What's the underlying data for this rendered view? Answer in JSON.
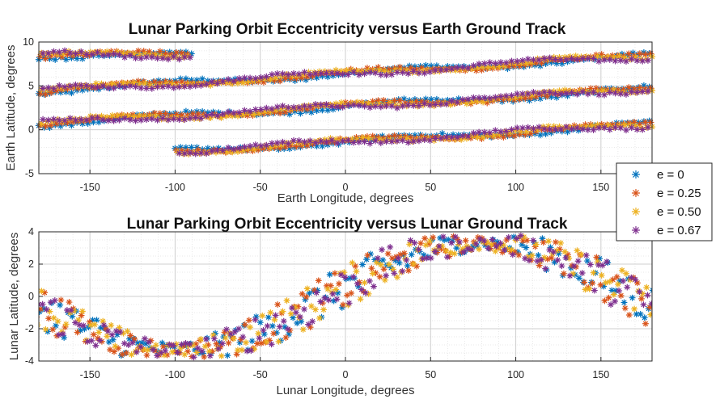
{
  "chart_data": [
    {
      "type": "scatter",
      "title": "Lunar Parking Orbit Eccentricity versus Earth Ground Track",
      "xlabel": "Earth Longitude, degrees",
      "ylabel": "Earth Latitude, degrees",
      "xlim": [
        -180,
        180
      ],
      "ylim": [
        -5,
        10
      ],
      "xticks": [
        -150,
        -100,
        -50,
        0,
        50,
        100,
        150
      ],
      "yticks": [
        -5,
        0,
        5,
        10
      ],
      "grid": true,
      "minor_grid": true,
      "tracks": [
        {
          "x": [
            -180,
            180
          ],
          "y": [
            4.4,
            8.4
          ]
        },
        {
          "x": [
            -180,
            180
          ],
          "y": [
            0.7,
            4.6
          ]
        },
        {
          "x": [
            -100,
            180
          ],
          "y": [
            -2.5,
            0.6
          ]
        },
        {
          "x": [
            -180,
            -90
          ],
          "y": [
            8.5,
            8.5
          ]
        }
      ],
      "series": [
        {
          "name": "e = 0",
          "color": "#0072BD"
        },
        {
          "name": "e = 0.25",
          "color": "#D95319"
        },
        {
          "name": "e = 0.50",
          "color": "#EDB120"
        },
        {
          "name": "e = 0.67",
          "color": "#7E2F8E"
        }
      ]
    },
    {
      "type": "scatter",
      "title": "Lunar Parking Orbit Eccentricity versus Lunar Ground Track",
      "xlabel": "Lunar Longitude, degrees",
      "ylabel": "Lunar Latitude, degrees",
      "xlim": [
        -180,
        180
      ],
      "ylim": [
        -4,
        4
      ],
      "xticks": [
        -150,
        -100,
        -50,
        0,
        50,
        100,
        150
      ],
      "yticks": [
        -4,
        -2,
        0,
        2,
        4
      ],
      "grid": true,
      "minor_grid": true,
      "amplitude": 3.3,
      "peak_longitude": 80,
      "band_width": 1.0,
      "series": [
        {
          "name": "e = 0",
          "color": "#0072BD"
        },
        {
          "name": "e = 0.25",
          "color": "#D95319"
        },
        {
          "name": "e = 0.50",
          "color": "#EDB120"
        },
        {
          "name": "e = 0.67",
          "color": "#7E2F8E"
        }
      ]
    }
  ],
  "legend": {
    "placement": "right, between panels",
    "entries": [
      {
        "label": "e = 0",
        "color": "#0072BD"
      },
      {
        "label": "e = 0.25",
        "color": "#D95319"
      },
      {
        "label": "e = 0.50",
        "color": "#EDB120"
      },
      {
        "label": "e = 0.67",
        "color": "#7E2F8E"
      }
    ]
  }
}
